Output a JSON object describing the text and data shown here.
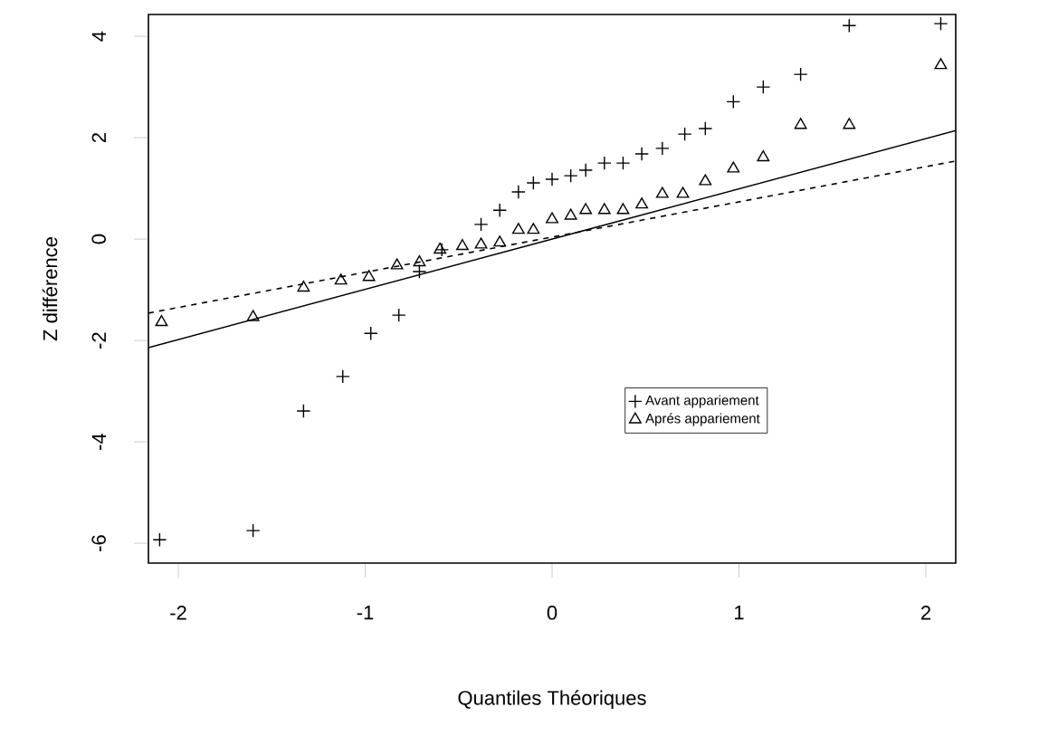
{
  "chart_data": {
    "type": "scatter",
    "xlabel": "Quantiles Théoriques",
    "ylabel": "Z différence",
    "xlim": [
      -2.16,
      2.16
    ],
    "ylim": [
      -6.39,
      4.43
    ],
    "xticks": [
      -2,
      -1,
      0,
      1,
      2
    ],
    "yticks": [
      -6,
      -4,
      -2,
      0,
      2,
      4
    ],
    "grid": false,
    "legend": "right",
    "series": [
      {
        "name": "Avant appariement",
        "marker": "cross",
        "color": "#000000",
        "x": [
          -2.1,
          -1.6,
          -1.33,
          -1.12,
          -0.97,
          -0.82,
          -0.71,
          -0.59,
          -0.38,
          -0.28,
          -0.18,
          -0.1,
          0.0,
          0.1,
          0.18,
          0.28,
          0.38,
          0.48,
          0.59,
          0.71,
          0.82,
          0.97,
          1.13,
          1.33,
          1.59,
          2.08
        ],
        "values": [
          -5.93,
          -5.75,
          -3.39,
          -2.71,
          -1.86,
          -1.5,
          -0.64,
          -0.21,
          0.29,
          0.57,
          0.93,
          1.11,
          1.18,
          1.25,
          1.36,
          1.5,
          1.5,
          1.68,
          1.79,
          2.07,
          2.18,
          2.71,
          3.0,
          3.25,
          4.21,
          4.25
        ]
      },
      {
        "name": "Aprés appariement",
        "marker": "triangle",
        "color": "#000000",
        "x": [
          -2.09,
          -1.6,
          -1.33,
          -1.13,
          -0.98,
          -0.83,
          -0.71,
          -0.6,
          -0.48,
          -0.38,
          -0.28,
          -0.18,
          -0.1,
          0.0,
          0.1,
          0.18,
          0.28,
          0.38,
          0.48,
          0.59,
          0.7,
          0.82,
          0.97,
          1.13,
          1.33,
          1.59,
          2.08
        ],
        "values": [
          -1.64,
          -1.54,
          -0.96,
          -0.82,
          -0.75,
          -0.52,
          -0.46,
          -0.21,
          -0.14,
          -0.11,
          -0.07,
          0.18,
          0.18,
          0.39,
          0.46,
          0.57,
          0.57,
          0.57,
          0.68,
          0.89,
          0.89,
          1.14,
          1.39,
          1.61,
          2.25,
          2.25,
          3.43
        ]
      },
      {
        "type": "line",
        "line_style": "solid",
        "color": "#000000",
        "x": [
          -2.16,
          2.16
        ],
        "values": [
          -2.14,
          2.14
        ]
      },
      {
        "type": "line",
        "line_style": "dashed",
        "color": "#000000",
        "x": [
          -2.16,
          2.16
        ],
        "values": [
          -1.46,
          1.54
        ]
      }
    ]
  }
}
